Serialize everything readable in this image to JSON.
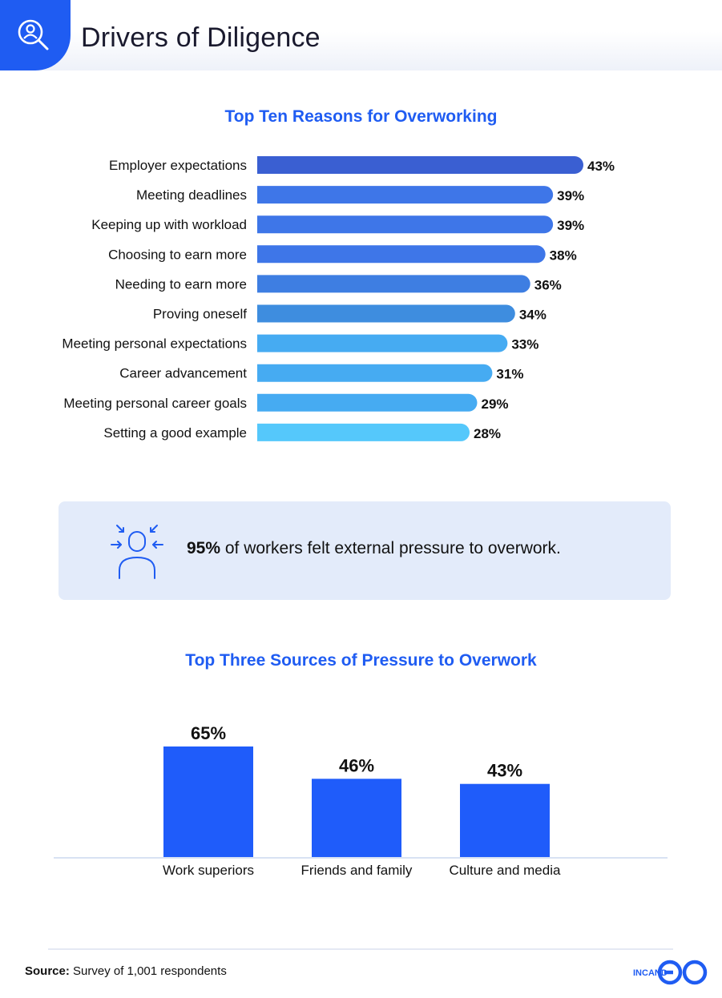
{
  "header": {
    "title": "Drivers of Diligence",
    "icon": "search-person-icon",
    "accent": "#1f5cf2"
  },
  "chart_data": [
    {
      "type": "bar",
      "orientation": "horizontal",
      "title": "Top Ten Reasons for Overworking",
      "categories": [
        "Employer expectations",
        "Meeting deadlines",
        "Keeping up with workload",
        "Choosing to earn more",
        "Needing to earn more",
        "Proving oneself",
        "Meeting personal expectations",
        "Career advancement",
        "Meeting personal career goals",
        "Setting a good example"
      ],
      "values": [
        43,
        39,
        39,
        38,
        36,
        34,
        33,
        31,
        29,
        28
      ],
      "data_labels": [
        "43%",
        "39%",
        "39%",
        "38%",
        "36%",
        "34%",
        "33%",
        "31%",
        "29%",
        "28%"
      ],
      "colors": [
        "#3a5fd2",
        "#3e76e8",
        "#3e76e8",
        "#3e76e8",
        "#3e7ee2",
        "#3e8ddf",
        "#46abf2",
        "#46abf2",
        "#46abf2",
        "#55c8fb"
      ],
      "xlim": [
        0,
        43
      ],
      "grid": false,
      "legend": "none"
    },
    {
      "type": "bar",
      "orientation": "vertical",
      "title": "Top Three Sources of Pressure to Overwork",
      "categories": [
        "Work superiors",
        "Friends and family",
        "Culture and media"
      ],
      "values": [
        65,
        46,
        43
      ],
      "data_labels": [
        "65%",
        "46%",
        "43%"
      ],
      "colors": [
        "#1f5cfa",
        "#1f5cfa",
        "#1f5cfa"
      ],
      "ylim": [
        0,
        65
      ],
      "grid": false,
      "legend": "none"
    }
  ],
  "callout": {
    "icon": "pressure-person-icon",
    "highlight": "95%",
    "text": " of workers felt external pressure to overwork."
  },
  "footer": {
    "source_label": "Source:",
    "source_text": " Survey of 1,001 respondents",
    "logo_text": "INCAND",
    "logo_icon": "go-logo-icon"
  }
}
